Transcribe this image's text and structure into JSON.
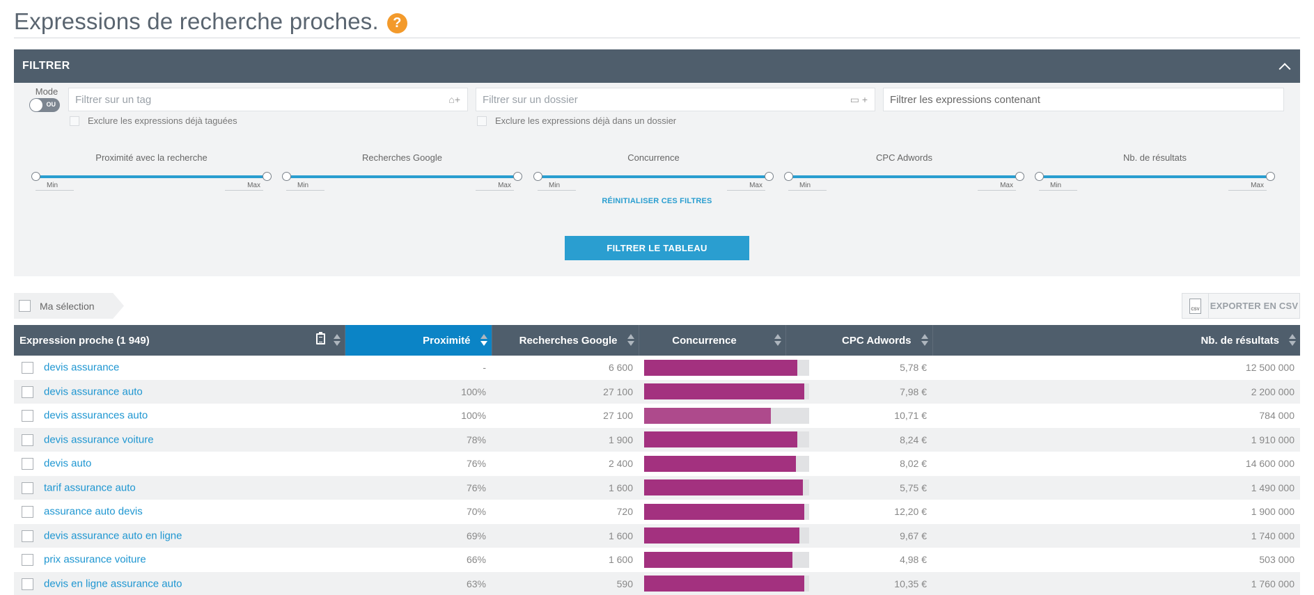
{
  "header": {
    "title": "Expressions de recherche proches.",
    "help": "?"
  },
  "filter": {
    "title": "FILTRER",
    "mode_label": "Mode",
    "mode_toggle_text": "OU",
    "tag_placeholder": "Filtrer sur un tag",
    "folder_placeholder": "Filtrer sur un dossier",
    "text_placeholder": "Filtrer les expressions contenant",
    "exclude_tagged": "Exclure les expressions déjà taguées",
    "exclude_foldered": "Exclure les expressions déjà dans un dossier",
    "sliders": [
      {
        "title": "Proximité avec la recherche",
        "min": "Min",
        "max": "Max"
      },
      {
        "title": "Recherches Google",
        "min": "Min",
        "max": "Max"
      },
      {
        "title": "Concurrence",
        "min": "Min",
        "max": "Max"
      },
      {
        "title": "CPC Adwords",
        "min": "Min",
        "max": "Max"
      },
      {
        "title": "Nb. de résultats",
        "min": "Min",
        "max": "Max"
      }
    ],
    "reset_label": "RÉINITIALISER CES FILTRES",
    "apply_label": "FILTRER LE TABLEAU"
  },
  "selection": {
    "label": "Ma sélection"
  },
  "export": {
    "label": "EXPORTER EN CSV",
    "icon_text": "CSV"
  },
  "table": {
    "columns": [
      "Expression proche (1 949)",
      "Proximité",
      "Recherches Google",
      "Concurrence",
      "CPC Adwords",
      "Nb. de résultats"
    ],
    "rows": [
      {
        "expression": "devis assurance",
        "proximite": "-",
        "recherches": "6 600",
        "concurrence": 0.93,
        "cpc": "5,78 €",
        "resultats": "12 500 000"
      },
      {
        "expression": "devis assurance auto",
        "proximite": "100%",
        "recherches": "27 100",
        "concurrence": 0.97,
        "cpc": "7,98 €",
        "resultats": "2 200 000"
      },
      {
        "expression": "devis assurances auto",
        "proximite": "100%",
        "recherches": "27 100",
        "concurrence": 0.77,
        "cpc": "10,71 €",
        "resultats": "784 000"
      },
      {
        "expression": "devis assurance voiture",
        "proximite": "78%",
        "recherches": "1 900",
        "concurrence": 0.93,
        "cpc": "8,24 €",
        "resultats": "1 910 000"
      },
      {
        "expression": "devis auto",
        "proximite": "76%",
        "recherches": "2 400",
        "concurrence": 0.92,
        "cpc": "8,02 €",
        "resultats": "14 600 000"
      },
      {
        "expression": "tarif assurance auto",
        "proximite": "76%",
        "recherches": "1 600",
        "concurrence": 0.96,
        "cpc": "5,75 €",
        "resultats": "1 490 000"
      },
      {
        "expression": "assurance auto devis",
        "proximite": "70%",
        "recherches": "720",
        "concurrence": 0.97,
        "cpc": "12,20 €",
        "resultats": "1 900 000"
      },
      {
        "expression": "devis assurance auto en ligne",
        "proximite": "69%",
        "recherches": "1 600",
        "concurrence": 0.94,
        "cpc": "9,67 €",
        "resultats": "1 740 000"
      },
      {
        "expression": "prix assurance voiture",
        "proximite": "66%",
        "recherches": "1 600",
        "concurrence": 0.9,
        "cpc": "4,98 €",
        "resultats": "503 000"
      },
      {
        "expression": "devis en ligne assurance auto",
        "proximite": "63%",
        "recherches": "590",
        "concurrence": 0.97,
        "cpc": "10,35 €",
        "resultats": "1 760 000"
      }
    ]
  }
}
